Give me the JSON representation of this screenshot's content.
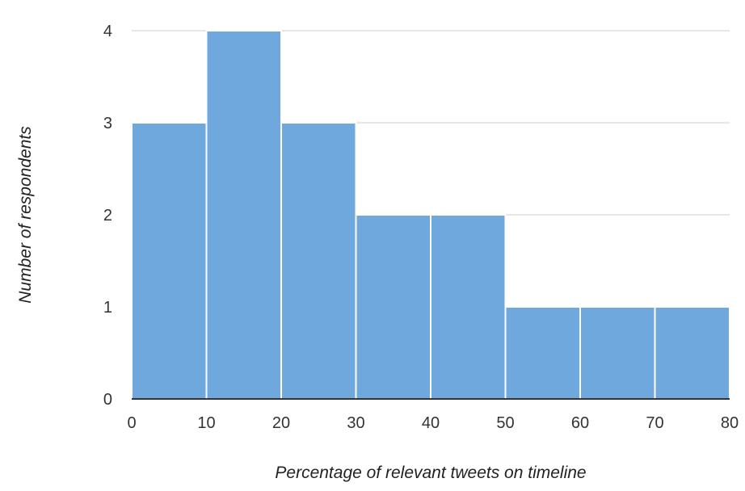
{
  "chart_data": {
    "type": "bar",
    "subtype": "histogram",
    "bins": [
      {
        "x0": 0,
        "x1": 10,
        "value": 3
      },
      {
        "x0": 10,
        "x1": 20,
        "value": 4
      },
      {
        "x0": 20,
        "x1": 30,
        "value": 3
      },
      {
        "x0": 30,
        "x1": 40,
        "value": 2
      },
      {
        "x0": 40,
        "x1": 50,
        "value": 2
      },
      {
        "x0": 50,
        "x1": 60,
        "value": 1
      },
      {
        "x0": 60,
        "x1": 70,
        "value": 1
      },
      {
        "x0": 70,
        "x1": 80,
        "value": 1
      }
    ],
    "xlabel": "Percentage of relevant tweets on timeline",
    "ylabel": "Number of respondents",
    "xlim": [
      0,
      80
    ],
    "ylim": [
      0,
      4
    ],
    "xticks": [
      "0",
      "10",
      "20",
      "30",
      "40",
      "50",
      "60",
      "70",
      "80"
    ],
    "yticks": [
      "0",
      "1",
      "2",
      "3",
      "4"
    ],
    "grid": "horizontal",
    "legend": "none",
    "colors": {
      "bar": "#6fa8dc",
      "bar_stroke": "#ffffff",
      "grid": "#cccccc",
      "axis": "#333333"
    }
  }
}
